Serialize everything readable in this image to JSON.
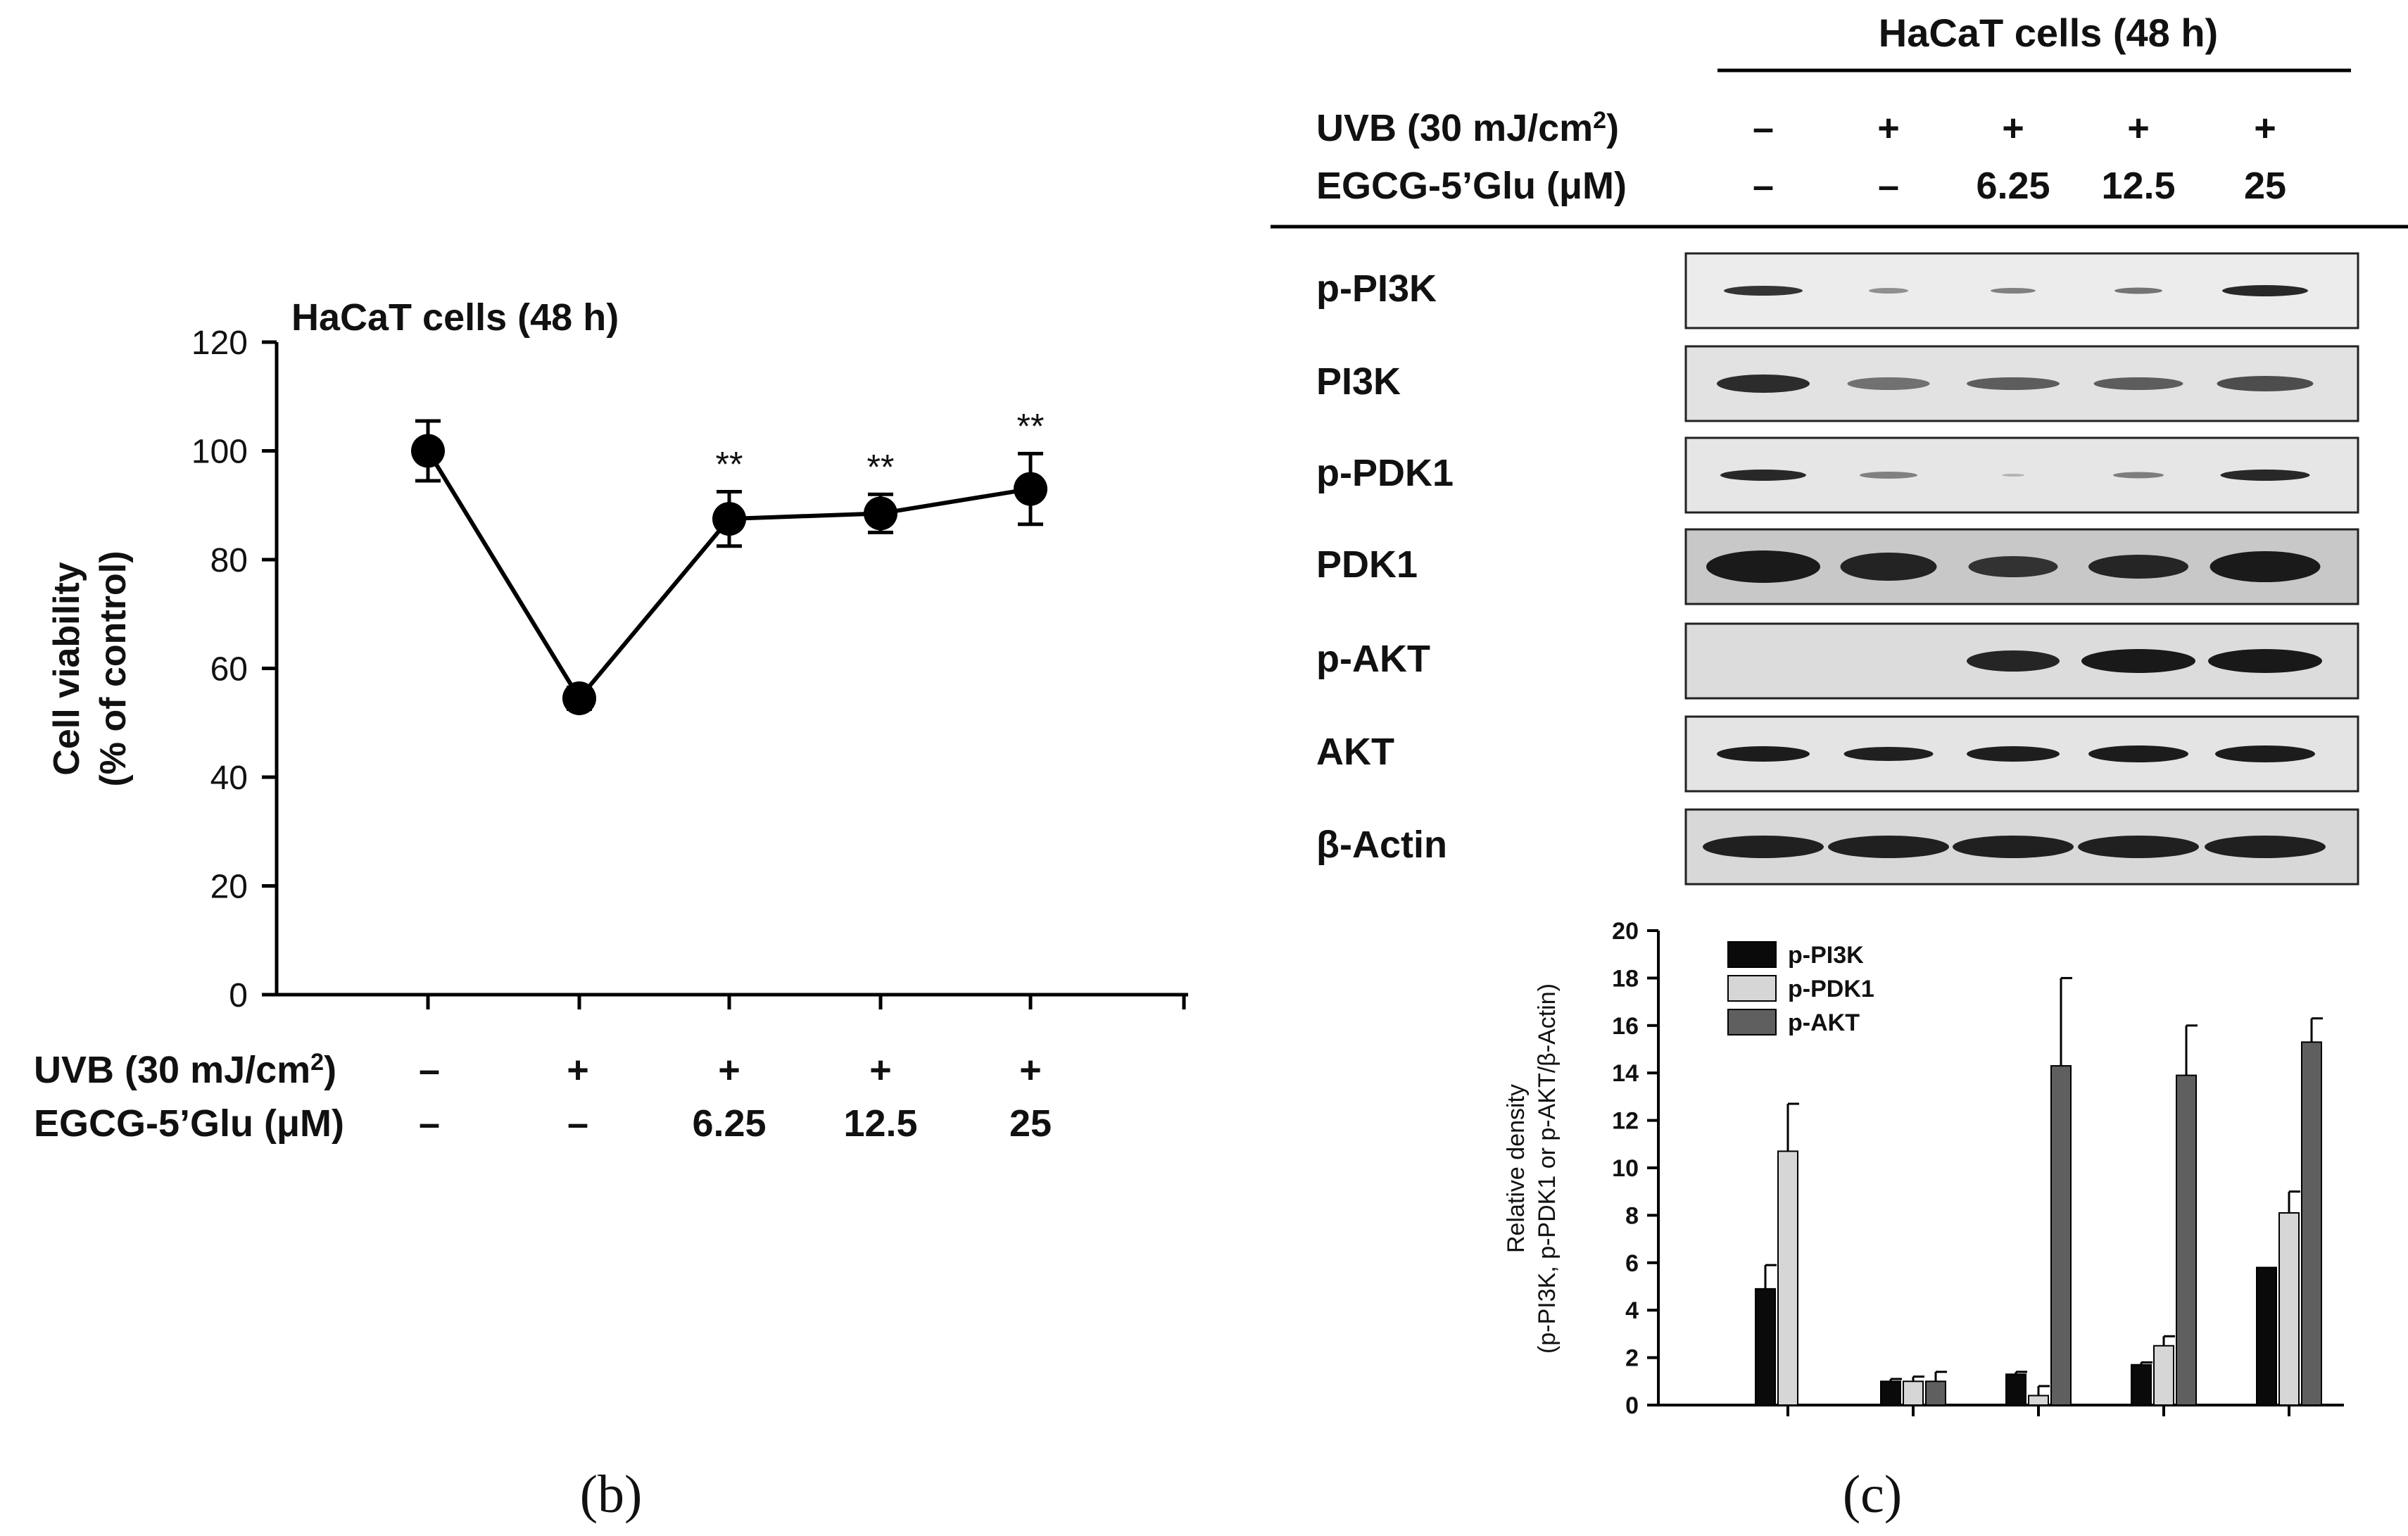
{
  "panel_labels": {
    "b": "(b)",
    "c": "(c)"
  },
  "treatment_table": {
    "uvb_label": "UVB (30 mJ/cm",
    "uvb_sup": "2",
    "uvb_close": ")",
    "egcg_label": "EGCG-5’Glu (μM)",
    "uvb_signs": [
      "–",
      "+",
      "+",
      "+",
      "+"
    ],
    "egcg_values": [
      "–",
      "–",
      "6.25",
      "12.5",
      "25"
    ]
  },
  "blot": {
    "header": "HaCaT cells (48 h)",
    "proteins": [
      "p-PI3K",
      "PI3K",
      "p-PDK1",
      "PDK1",
      "p-AKT",
      "AKT",
      "β-Actin"
    ]
  },
  "colors": {
    "p-PI3K": "#0a0a0a",
    "p-PDK1": "#d6d6d6",
    "p-AKT": "#5f5f5f",
    "marker": "#000000"
  },
  "chart_data": [
    {
      "type": "line",
      "title": "HaCaT cells (48 h)",
      "ylabel_line1": "Cell viability",
      "ylabel_line2": "(% of control)",
      "ylim": [
        0,
        120
      ],
      "yticks": [
        "0",
        "20",
        "40",
        "60",
        "80",
        "100",
        "120"
      ],
      "x": [
        "1",
        "2",
        "3",
        "4",
        "5"
      ],
      "values": [
        100,
        54.5,
        87.5,
        88.5,
        93
      ],
      "errors": [
        5.5,
        2,
        5,
        3.5,
        6.5
      ],
      "significance": [
        "",
        "",
        "**",
        "**",
        "**"
      ],
      "grid": false
    },
    {
      "type": "bar",
      "ylabel_line1": "Relative density",
      "ylabel_line2": "(p-PI3K, p-PDK1 or p-AKT/β-Actin)",
      "ylim": [
        0,
        20
      ],
      "yticks": [
        "0",
        "2",
        "4",
        "6",
        "8",
        "10",
        "12",
        "14",
        "16",
        "18",
        "20"
      ],
      "categories": [
        "1",
        "2",
        "3",
        "4",
        "5"
      ],
      "legend_position": "top-left",
      "series": [
        {
          "name": "p-PI3K",
          "values": [
            4.9,
            1.0,
            1.3,
            1.7,
            5.8
          ],
          "errors": [
            1.0,
            0.1,
            0.1,
            0.1,
            0.0
          ]
        },
        {
          "name": "p-PDK1",
          "values": [
            10.7,
            1.0,
            0.4,
            2.5,
            8.1
          ],
          "errors": [
            2.0,
            0.2,
            0.4,
            0.4,
            0.9
          ]
        },
        {
          "name": "p-AKT",
          "values": [
            0,
            1.0,
            14.3,
            13.9,
            15.3
          ],
          "errors": [
            0,
            0.4,
            3.7,
            2.1,
            1.0
          ]
        }
      ],
      "grid": false
    }
  ]
}
